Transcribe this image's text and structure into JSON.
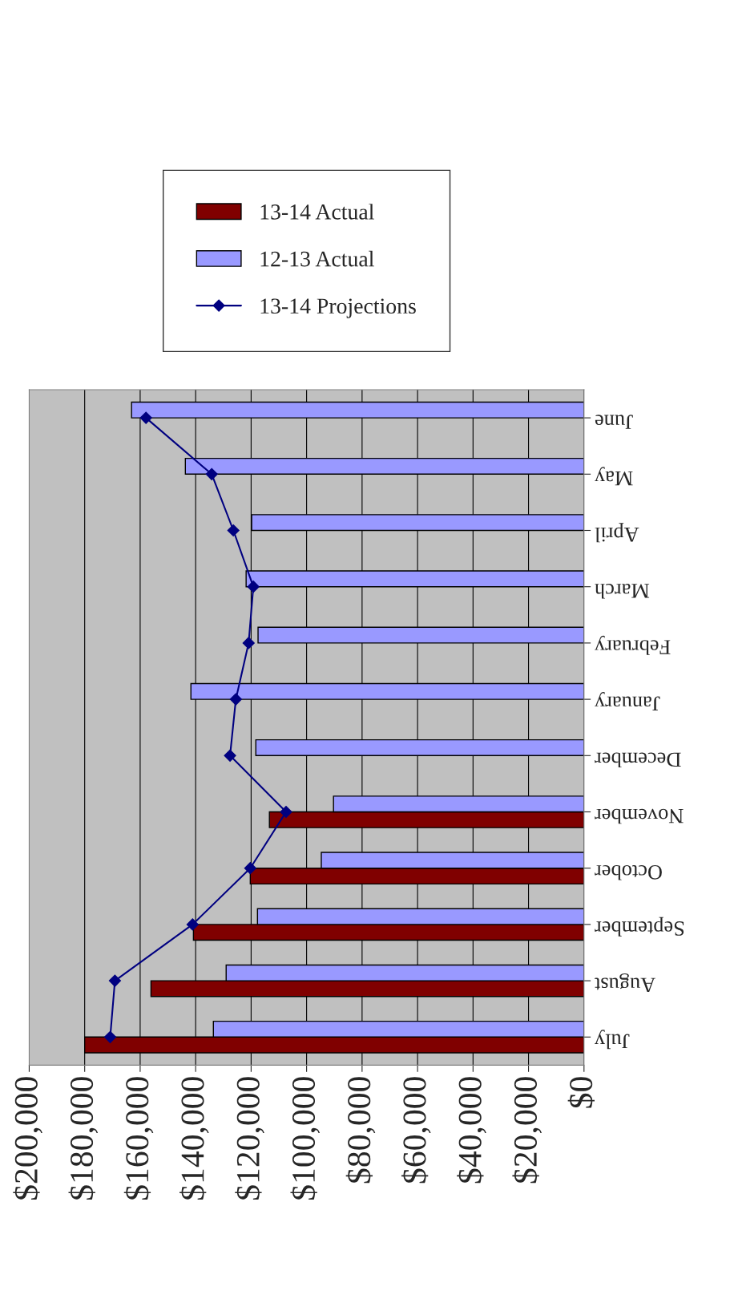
{
  "chart_data": {
    "type": "bar",
    "orientation": "horizontal",
    "categories": [
      "June",
      "May",
      "April",
      "March",
      "February",
      "January",
      "December",
      "November",
      "October",
      "September",
      "August",
      "July"
    ],
    "series": [
      {
        "name": "13-14 Actual",
        "color": "#800000",
        "values": [
          null,
          null,
          null,
          null,
          null,
          null,
          null,
          113400,
          120300,
          140800,
          156100,
          180000
        ]
      },
      {
        "name": "12-13 Actual",
        "color": "#9999ff",
        "values": [
          163100,
          143700,
          119800,
          121800,
          117500,
          141700,
          118300,
          90300,
          94700,
          117700,
          129000,
          133600
        ]
      },
      {
        "name": "13-14 Projections",
        "type": "line",
        "color": "#000080",
        "marker": "diamond",
        "values": [
          157900,
          134200,
          126400,
          119200,
          120900,
          125500,
          127600,
          107400,
          120300,
          141100,
          169100,
          170800
        ]
      }
    ],
    "xlim": [
      200000,
      0
    ],
    "xticks": [
      {
        "value": 200000,
        "label": "$200,000"
      },
      {
        "value": 180000,
        "label": "$180,000"
      },
      {
        "value": 160000,
        "label": "$160,000"
      },
      {
        "value": 140000,
        "label": "$140,000"
      },
      {
        "value": 120000,
        "label": "$120,000"
      },
      {
        "value": 100000,
        "label": "$100,000"
      },
      {
        "value": 80000,
        "label": "$80,000"
      },
      {
        "value": 60000,
        "label": "$60,000"
      },
      {
        "value": 40000,
        "label": "$40,000"
      },
      {
        "value": 20000,
        "label": "$20,000"
      },
      {
        "value": 0,
        "label": "$0"
      }
    ],
    "grid": "x",
    "legend": "top"
  }
}
